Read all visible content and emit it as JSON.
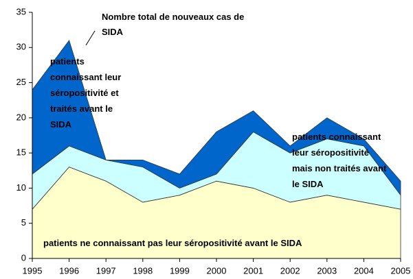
{
  "chart_data": {
    "type": "stacked_area",
    "x": [
      1995,
      1996,
      1997,
      1998,
      1999,
      2000,
      2001,
      2002,
      2003,
      2004,
      2005
    ],
    "series": [
      {
        "name": "patients ne connaissant pas leur séropositivité avant le SIDA",
        "color": "#ffffcc",
        "values": [
          7,
          13,
          11,
          8,
          9,
          11,
          10,
          8,
          9,
          8,
          7
        ]
      },
      {
        "name": "patients connaissant leur séropositivité mais non traités avant le SIDA",
        "color": "#ccffff",
        "values": [
          5,
          3,
          3,
          5,
          1,
          1,
          8,
          7,
          8,
          8,
          2
        ]
      },
      {
        "name": "patients connaissant leur séropositivité et traités avant le SIDA",
        "color": "#0066cc",
        "values": [
          12,
          15,
          0,
          1,
          2,
          6,
          3,
          1,
          3,
          1,
          2
        ]
      }
    ],
    "annotation": "Nombre total de nouveaux cas de SIDA",
    "xlim": [
      1995,
      2005
    ],
    "xticks": [
      1995,
      1996,
      1997,
      1998,
      1999,
      2000,
      2001,
      2002,
      2003,
      2004,
      2005
    ],
    "ylim": [
      0,
      35
    ],
    "yticks": [
      0,
      5,
      10,
      15,
      20,
      25,
      30,
      35
    ],
    "grid": false
  }
}
